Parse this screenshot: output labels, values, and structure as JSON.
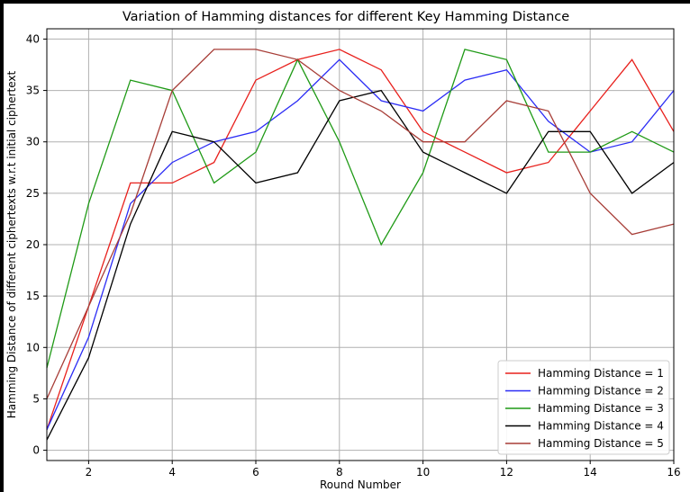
{
  "chart_data": {
    "type": "line",
    "title": "Variation of Hamming distances for different Key Hamming Distance",
    "xlabel": "Round Number",
    "ylabel": "Hamming Distance of different ciphertexts w.r.t initial ciphertext",
    "xlim": [
      1,
      16
    ],
    "ylim": [
      -1,
      41
    ],
    "xticks": [
      2,
      4,
      6,
      8,
      10,
      12,
      14,
      16
    ],
    "yticks": [
      0,
      5,
      10,
      15,
      20,
      25,
      30,
      35,
      40
    ],
    "grid": true,
    "legend_position": "lower-right",
    "x": [
      1,
      2,
      3,
      4,
      5,
      6,
      7,
      8,
      9,
      10,
      11,
      12,
      13,
      14,
      15,
      16
    ],
    "series": [
      {
        "name": "Hamming Distance = 1",
        "color": "#e8201c",
        "values": [
          2,
          14,
          26,
          26,
          28,
          36,
          38,
          39,
          37,
          31,
          29,
          27,
          28,
          33,
          38,
          31
        ]
      },
      {
        "name": "Hamming Distance = 2",
        "color": "#2b2cf5",
        "values": [
          2,
          11,
          24,
          28,
          30,
          31,
          34,
          38,
          34,
          33,
          36,
          37,
          32,
          29,
          30,
          35
        ]
      },
      {
        "name": "Hamming Distance = 3",
        "color": "#1f9a16",
        "values": [
          8,
          24,
          36,
          35,
          26,
          29,
          38,
          30,
          20,
          27,
          39,
          38,
          29,
          29,
          31,
          29
        ]
      },
      {
        "name": "Hamming Distance = 4",
        "color": "#000000",
        "values": [
          1,
          9,
          22,
          31,
          30,
          26,
          27,
          34,
          35,
          29,
          27,
          25,
          31,
          31,
          25,
          28
        ]
      },
      {
        "name": "Hamming Distance = 5",
        "color": "#a73d37",
        "values": [
          5,
          14,
          23,
          35,
          39,
          39,
          38,
          35,
          33,
          30,
          30,
          34,
          33,
          25,
          21,
          22
        ]
      }
    ]
  }
}
